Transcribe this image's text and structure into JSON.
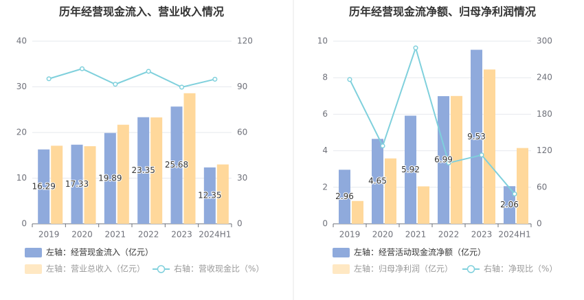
{
  "colors": {
    "bar_primary": "#8faadc",
    "bar_secondary": "#ffd89b",
    "line": "#7fd0dc",
    "grid": "#e6e8ee",
    "divider": "#e6e6e6"
  },
  "chart_data": [
    {
      "type": "bar",
      "title": "历年经营现金流入、营业收入情况",
      "categories": [
        "2019",
        "2020",
        "2021",
        "2022",
        "2023",
        "2024H1"
      ],
      "left_axis": {
        "ticks": [
          "0",
          "10",
          "20",
          "30",
          "40"
        ],
        "ylim": [
          0,
          40
        ]
      },
      "right_axis": {
        "ticks": [
          "0",
          "30",
          "60",
          "90",
          "120"
        ],
        "ylim": [
          0,
          120
        ]
      },
      "grid": true,
      "legend_placement": "bottom-left",
      "series": [
        {
          "name": "左轴：经营现金流入（亿元）",
          "axis": "left",
          "kind": "bar",
          "color": "#8faadc",
          "values": [
            16.29,
            17.33,
            19.89,
            23.35,
            25.68,
            12.35
          ],
          "labels": [
            "16.29",
            "17.33",
            "19.89",
            "23.35",
            "25.68",
            "12.35"
          ]
        },
        {
          "name": "左轴：营业总收入（亿元）",
          "axis": "left",
          "kind": "bar",
          "color": "#ffd89b",
          "values": [
            17.1,
            17.0,
            21.7,
            23.3,
            28.6,
            13.0
          ]
        },
        {
          "name": "右轴：营收现金比（%）",
          "axis": "right",
          "kind": "line",
          "color": "#7fd0dc",
          "values": [
            95.3,
            101.9,
            91.7,
            100.2,
            89.8,
            95.0
          ]
        }
      ]
    },
    {
      "type": "bar",
      "title": "历年经营现金流净额、归母净利润情况",
      "categories": [
        "2019",
        "2020",
        "2021",
        "2022",
        "2023",
        "2024H1"
      ],
      "left_axis": {
        "ticks": [
          "0",
          "2",
          "4",
          "6",
          "8",
          "10"
        ],
        "ylim": [
          0,
          10
        ]
      },
      "right_axis": {
        "ticks": [
          "0",
          "60",
          "120",
          "180",
          "240",
          "300"
        ],
        "ylim": [
          0,
          300
        ]
      },
      "grid": true,
      "legend_placement": "bottom-left",
      "series": [
        {
          "name": "左轴：经营活动现金流净额（亿元）",
          "axis": "left",
          "kind": "bar",
          "color": "#8faadc",
          "values": [
            2.96,
            4.65,
            5.92,
            6.99,
            9.53,
            2.06
          ],
          "labels": [
            "2.96",
            "4.65",
            "5.92",
            "6.99",
            "9.53",
            "2.06"
          ]
        },
        {
          "name": "左轴：归母净利润（亿元）",
          "axis": "left",
          "kind": "bar",
          "color": "#ffd89b",
          "values": [
            1.25,
            3.58,
            2.05,
            7.0,
            8.45,
            4.15
          ]
        },
        {
          "name": "右轴：净现比（%）",
          "axis": "right",
          "kind": "line",
          "color": "#7fd0dc",
          "values": [
            237,
            128,
            289,
            100,
            113,
            49
          ]
        }
      ]
    }
  ]
}
